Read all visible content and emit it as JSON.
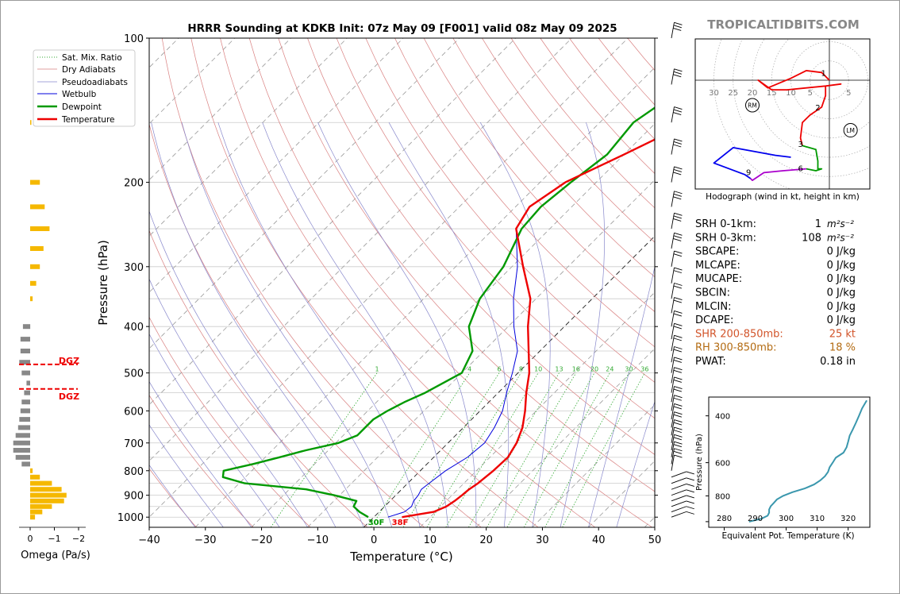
{
  "title": "HRRR Sounding at KDKB Init: 07z May 09 [F001] valid 08z May 09 2025",
  "brand": "TROPICALTIDBITS.COM",
  "omega_xlabel": "Omega (Pa/s)",
  "omega_ticks": [
    "0",
    "−1",
    "−2"
  ],
  "dgz_label": "DGZ",
  "hodo_caption": "Hodograph (wind in kt, height in km)",
  "hodo_ring_labels": [
    "30",
    "25",
    "20",
    "15",
    "10",
    "5",
    "5"
  ],
  "hodo_markers": [
    "RM",
    "LM"
  ],
  "hodo_height_labels": [
    "1",
    "2",
    "3",
    "6",
    "9"
  ],
  "surface_labels": {
    "dewpoint": "30F",
    "temperature": "38F"
  },
  "mixing_ratio_labels": [
    "1",
    "4",
    "6",
    "8",
    "10",
    "13",
    "16",
    "20",
    "24",
    "30",
    "36"
  ],
  "indices": [
    {
      "label": "SRH 0-1km:",
      "value": "1",
      "unit": "m²s⁻²",
      "color": "#000000"
    },
    {
      "label": "SRH 0-3km:",
      "value": "108",
      "unit": "m²s⁻²",
      "color": "#000000"
    },
    {
      "label": "SBCAPE:",
      "value": "0 J/kg",
      "unit": "",
      "color": "#000000"
    },
    {
      "label": "MLCAPE:",
      "value": "0 J/kg",
      "unit": "",
      "color": "#000000"
    },
    {
      "label": "MUCAPE:",
      "value": "0 J/kg",
      "unit": "",
      "color": "#000000"
    },
    {
      "label": "SBCIN:",
      "value": "0 J/kg",
      "unit": "",
      "color": "#000000"
    },
    {
      "label": "MLCIN:",
      "value": "0 J/kg",
      "unit": "",
      "color": "#000000"
    },
    {
      "label": "DCAPE:",
      "value": "0 J/kg",
      "unit": "",
      "color": "#000000"
    },
    {
      "label": "SHR 200-850mb:",
      "value": "25 kt",
      "unit": "",
      "color": "#d2542a"
    },
    {
      "label": "RH 300-850mb:",
      "value": "18 %",
      "unit": "",
      "color": "#b36b12"
    },
    {
      "label": "PWAT:",
      "value": "0.18 in",
      "unit": "",
      "color": "#000000"
    }
  ],
  "colors": {
    "temperature": "#ee0000",
    "dewpoint": "#009900",
    "wetbulb": "#0000dd",
    "dry_adiabat": "#d98080",
    "pseudoadiabat": "#8888cc",
    "mixing_ratio": "#33aa33",
    "omega": "#f5b800",
    "theta_e": "#3a97ad",
    "hodo_0_1": "#ee0000",
    "hodo_3_6": "#009900",
    "hodo_6_9": "#aa00cc",
    "hodo_9_plus": "#0000ee"
  },
  "chart_data": [
    {
      "type": "line",
      "name": "skewt",
      "title": "HRRR Sounding at KDKB Init: 07z May 09 [F001] valid 08z May 09 2025",
      "xlabel": "Temperature (°C)",
      "ylabel": "Pressure (hPa)",
      "xlim": [
        -40,
        50
      ],
      "ylim": [
        1050,
        100
      ],
      "log_y": true,
      "x_ticks": [
        -40,
        -30,
        -20,
        -10,
        0,
        10,
        20,
        30,
        40,
        50
      ],
      "y_ticks": [
        100,
        200,
        300,
        400,
        500,
        600,
        700,
        800,
        900,
        1000
      ],
      "grid": true,
      "legend_position": "top-left",
      "legend": [
        "Sat. Mix. Ratio",
        "Dry Adiabats",
        "Pseudoadiabats",
        "Wetbulb",
        "Dewpoint",
        "Temperature"
      ],
      "temperature": [
        [
          1000,
          5
        ],
        [
          975,
          9.7
        ],
        [
          950,
          11
        ],
        [
          925,
          11.5
        ],
        [
          900,
          11.8
        ],
        [
          875,
          12
        ],
        [
          850,
          12.5
        ],
        [
          800,
          13
        ],
        [
          750,
          13.2
        ],
        [
          700,
          12.2
        ],
        [
          650,
          10.5
        ],
        [
          600,
          8
        ],
        [
          550,
          5
        ],
        [
          500,
          2
        ],
        [
          450,
          -2
        ],
        [
          400,
          -6.5
        ],
        [
          350,
          -11
        ],
        [
          300,
          -18
        ],
        [
          250,
          -26
        ],
        [
          225,
          -27.5
        ],
        [
          200,
          -25.5
        ],
        [
          175,
          -20
        ],
        [
          150,
          -14
        ],
        [
          125,
          -9
        ],
        [
          110,
          -6.5
        ],
        [
          100,
          -5
        ]
      ],
      "dewpoint": [
        [
          1000,
          -1
        ],
        [
          975,
          -3.5
        ],
        [
          950,
          -5.5
        ],
        [
          925,
          -6
        ],
        [
          900,
          -11
        ],
        [
          875,
          -17
        ],
        [
          850,
          -29
        ],
        [
          825,
          -34
        ],
        [
          800,
          -35
        ],
        [
          775,
          -31
        ],
        [
          750,
          -27.5
        ],
        [
          725,
          -24
        ],
        [
          700,
          -19.5
        ],
        [
          675,
          -17.5
        ],
        [
          650,
          -17.5
        ],
        [
          625,
          -17.5
        ],
        [
          600,
          -16.5
        ],
        [
          575,
          -15
        ],
        [
          550,
          -13
        ],
        [
          500,
          -10
        ],
        [
          450,
          -12
        ],
        [
          400,
          -17
        ],
        [
          350,
          -20
        ],
        [
          300,
          -21.5
        ],
        [
          250,
          -25
        ],
        [
          225,
          -25.5
        ],
        [
          200,
          -24.5
        ],
        [
          175,
          -23
        ],
        [
          150,
          -24
        ],
        [
          125,
          -21
        ],
        [
          100,
          -15
        ]
      ],
      "wetbulb": [
        [
          1000,
          2.5
        ],
        [
          975,
          4.5
        ],
        [
          950,
          4.8
        ],
        [
          925,
          4.2
        ],
        [
          900,
          4
        ],
        [
          875,
          3.5
        ],
        [
          850,
          3.8
        ],
        [
          800,
          4.5
        ],
        [
          750,
          6
        ],
        [
          700,
          6.5
        ],
        [
          650,
          5.5
        ],
        [
          600,
          4
        ],
        [
          550,
          1.5
        ],
        [
          500,
          -1
        ],
        [
          450,
          -4
        ],
        [
          400,
          -9
        ],
        [
          350,
          -14
        ],
        [
          300,
          -19
        ],
        [
          250,
          -26
        ],
        [
          225,
          -27.5
        ],
        [
          200,
          -25.5
        ],
        [
          175,
          -20
        ],
        [
          150,
          -14
        ],
        [
          125,
          -8.5
        ],
        [
          110,
          -6
        ],
        [
          100,
          -4.5
        ]
      ],
      "mixing_ratio_gkg": [
        1,
        4,
        6,
        8,
        10,
        13,
        16,
        20,
        24,
        30,
        36
      ],
      "surface_temperature_f": 38,
      "surface_dewpoint_f": 30
    },
    {
      "type": "bar",
      "name": "omega",
      "xlabel": "Omega (Pa/s)",
      "xlim": [
        0.3,
        -2.3
      ],
      "x_ticks": [
        0,
        -1,
        -2
      ],
      "dgz_pressures": [
        480,
        540
      ],
      "bars": [
        [
          1000,
          -0.2
        ],
        [
          975,
          -0.5
        ],
        [
          950,
          -0.9
        ],
        [
          925,
          -1.4
        ],
        [
          900,
          -1.5
        ],
        [
          875,
          -1.3
        ],
        [
          850,
          -0.9
        ],
        [
          825,
          -0.4
        ],
        [
          800,
          -0.1
        ],
        [
          775,
          0.35
        ],
        [
          750,
          0.6
        ],
        [
          725,
          0.7
        ],
        [
          700,
          0.7
        ],
        [
          675,
          0.6
        ],
        [
          650,
          0.5
        ],
        [
          625,
          0.45
        ],
        [
          600,
          0.4
        ],
        [
          575,
          0.35
        ],
        [
          550,
          0.25
        ],
        [
          525,
          0.15
        ],
        [
          500,
          0.35
        ],
        [
          475,
          0.45
        ],
        [
          450,
          0.4
        ],
        [
          425,
          0.4
        ],
        [
          400,
          0.3
        ],
        [
          350,
          -0.1
        ],
        [
          325,
          -0.25
        ],
        [
          300,
          -0.4
        ],
        [
          275,
          -0.55
        ],
        [
          250,
          -0.8
        ],
        [
          225,
          -0.6
        ],
        [
          200,
          -0.4
        ],
        [
          150,
          -0.05
        ]
      ]
    },
    {
      "type": "line",
      "name": "hodograph",
      "xlabel": "",
      "ylabel": "",
      "ring_speeds_kt": [
        5,
        10,
        15,
        20,
        25,
        30
      ],
      "rm": [
        -20,
        -6.5
      ],
      "lm": [
        5.5,
        -13
      ],
      "segments": [
        {
          "color": "hodo_0_1",
          "points": [
            [
              0,
              0
            ],
            [
              -2,
              2
            ],
            [
              -6,
              2.5
            ],
            [
              -10,
              0.5
            ],
            [
              -16,
              -2
            ],
            [
              -18.5,
              0
            ],
            [
              -15,
              -2.5
            ],
            [
              -11,
              -2.5
            ],
            [
              -6,
              -2
            ],
            [
              -1,
              -1.5
            ],
            [
              3,
              -1
            ],
            [
              -1,
              -1.5
            ],
            [
              -1,
              -4
            ],
            [
              -2,
              -7
            ],
            [
              -5,
              -9
            ],
            [
              -7,
              -11
            ],
            [
              -7.5,
              -15
            ],
            [
              -7,
              -17
            ]
          ]
        },
        {
          "color": "hodo_3_6",
          "points": [
            [
              -7,
              -17
            ],
            [
              -3.5,
              -18
            ],
            [
              -3,
              -21
            ],
            [
              -3,
              -23
            ],
            [
              -2,
              -23
            ],
            [
              -3.5,
              -23.5
            ],
            [
              -6,
              -23
            ]
          ]
        },
        {
          "color": "hodo_6_9",
          "points": [
            [
              -6,
              -23
            ],
            [
              -12,
              -23.5
            ],
            [
              -17,
              -24
            ],
            [
              -20,
              -26
            ],
            [
              -20.5,
              -25.5
            ]
          ]
        },
        {
          "color": "hodo_9_plus",
          "points": [
            [
              -20.5,
              -25.5
            ],
            [
              -22,
              -24.5
            ],
            [
              -30,
              -21.5
            ],
            [
              -25,
              -17.5
            ],
            [
              -14,
              -19.5
            ],
            [
              -10,
              -20
            ]
          ]
        }
      ],
      "height_labels_km": [
        [
          1,
          -1.5,
          2
        ],
        [
          2,
          -3,
          -7
        ],
        [
          3,
          -7.5,
          -16.5
        ],
        [
          6,
          -7.5,
          -22.8
        ],
        [
          9,
          -21,
          -23.8
        ]
      ]
    },
    {
      "type": "line",
      "name": "theta_e",
      "xlabel": "Equivalent Pot. Temperature (K)",
      "ylabel": "Pressure (hPa)",
      "xlim": [
        275,
        327
      ],
      "ylim": [
        1050,
        340
      ],
      "x_ticks": [
        280,
        290,
        300,
        310,
        320
      ],
      "y_ticks": [
        400,
        600,
        800,
        1000
      ],
      "values": [
        [
          1000,
          288
        ],
        [
          975,
          292
        ],
        [
          950,
          294
        ],
        [
          925,
          294.5
        ],
        [
          900,
          294.5
        ],
        [
          875,
          295
        ],
        [
          850,
          296
        ],
        [
          825,
          297
        ],
        [
          800,
          299
        ],
        [
          775,
          302
        ],
        [
          750,
          306
        ],
        [
          725,
          309
        ],
        [
          700,
          311
        ],
        [
          675,
          312.5
        ],
        [
          650,
          313.5
        ],
        [
          625,
          314
        ],
        [
          600,
          315
        ],
        [
          575,
          316
        ],
        [
          550,
          318.5
        ],
        [
          525,
          319.5
        ],
        [
          500,
          320
        ],
        [
          475,
          320.5
        ],
        [
          450,
          321.5
        ],
        [
          425,
          322.5
        ],
        [
          400,
          323.5
        ],
        [
          375,
          324.5
        ],
        [
          350,
          326
        ]
      ]
    }
  ]
}
